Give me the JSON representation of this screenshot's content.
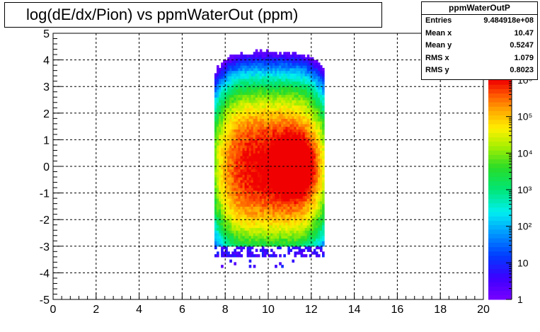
{
  "title": "log(dE/dx/Pion) vs ppmWaterOut (ppm)",
  "stats": {
    "name": "ppmWaterOutP",
    "rows": [
      {
        "label": "Entries",
        "value": "9.484918e+08"
      },
      {
        "label": "Mean x",
        "value": "10.47"
      },
      {
        "label": "Mean y",
        "value": "0.5247"
      },
      {
        "label": "RMS x",
        "value": "1.079"
      },
      {
        "label": "RMS y",
        "value": "0.8023"
      }
    ]
  },
  "chart_data": {
    "type": "heatmap",
    "title": "log(dE/dx/Pion) vs ppmWaterOut (ppm)",
    "xlabel": "",
    "ylabel": "",
    "xlim": [
      0,
      20
    ],
    "ylim": [
      -5,
      5
    ],
    "x_ticks": [
      "0",
      "2",
      "4",
      "6",
      "8",
      "10",
      "12",
      "14",
      "16",
      "18",
      "20"
    ],
    "y_ticks": [
      "-5",
      "-4",
      "-3",
      "-2",
      "-1",
      "0",
      "1",
      "2",
      "3",
      "4",
      "5"
    ],
    "grid": true,
    "z_scale": "log",
    "zlim": [
      1,
      1000000
    ],
    "z_ticks": [
      "1",
      "10",
      "10²",
      "10³",
      "10⁴",
      "10⁵",
      "10⁶"
    ],
    "x_range_filled": [
      7.5,
      12.6
    ],
    "y_range_filled": [
      -3.8,
      5
    ],
    "peak": {
      "x": 11.2,
      "y": 0.0
    }
  }
}
